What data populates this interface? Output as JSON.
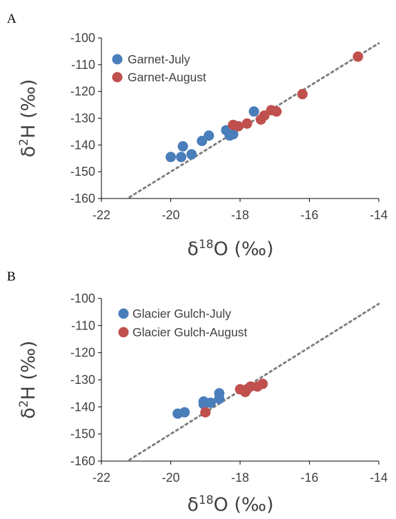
{
  "panels": [
    {
      "letter": "A"
    },
    {
      "letter": "B"
    }
  ],
  "chart_data": [
    {
      "type": "scatter",
      "panel_label": "A",
      "xlabel": "δ18O (‰)",
      "ylabel": "δ2H (‰)",
      "xlim": [
        -22,
        -14
      ],
      "ylim": [
        -160,
        -100
      ],
      "xticks": [
        -22,
        -20,
        -18,
        -16,
        -14
      ],
      "yticks": [
        -100,
        -110,
        -120,
        -130,
        -140,
        -150,
        -160
      ],
      "grid": false,
      "legend_position": "top-left",
      "reference_line": {
        "style": "dotted",
        "color": "#7f7f7f",
        "slope": 8,
        "intercept": 10
      },
      "series": [
        {
          "name": "Garnet-July",
          "color": "#4a7ebb",
          "points": [
            [
              -20.0,
              -144.5
            ],
            [
              -19.7,
              -144.5
            ],
            [
              -19.65,
              -140.5
            ],
            [
              -19.4,
              -143.5
            ],
            [
              -19.1,
              -138.5
            ],
            [
              -18.9,
              -136.5
            ],
            [
              -18.4,
              -134.5
            ],
            [
              -18.3,
              -136.5
            ],
            [
              -18.2,
              -136.0
            ],
            [
              -18.2,
              -133.0
            ],
            [
              -17.6,
              -127.5
            ]
          ]
        },
        {
          "name": "Garnet-August",
          "color": "#c0504d",
          "points": [
            [
              -18.2,
              -132.5
            ],
            [
              -18.05,
              -133.0
            ],
            [
              -17.8,
              -132.0
            ],
            [
              -17.4,
              -130.5
            ],
            [
              -17.3,
              -129.0
            ],
            [
              -17.1,
              -127.0
            ],
            [
              -16.95,
              -127.5
            ],
            [
              -16.2,
              -121.0
            ],
            [
              -14.6,
              -107.0
            ]
          ]
        }
      ]
    },
    {
      "type": "scatter",
      "panel_label": "B",
      "xlabel": "δ18O (‰)",
      "ylabel": "δ2H (‰)",
      "xlim": [
        -22,
        -14
      ],
      "ylim": [
        -160,
        -100
      ],
      "xticks": [
        -22,
        -20,
        -18,
        -16,
        -14
      ],
      "yticks": [
        -100,
        -110,
        -120,
        -130,
        -140,
        -150,
        -160
      ],
      "grid": false,
      "legend_position": "top-left",
      "reference_line": {
        "style": "dotted",
        "color": "#7f7f7f",
        "slope": 8,
        "intercept": 10
      },
      "series": [
        {
          "name": "Glacier Gulch-July",
          "color": "#4a7ebb",
          "points": [
            [
              -19.8,
              -142.5
            ],
            [
              -19.6,
              -142.0
            ],
            [
              -19.05,
              -139.0
            ],
            [
              -19.05,
              -138.0
            ],
            [
              -18.85,
              -138.5
            ],
            [
              -18.6,
              -137.0
            ],
            [
              -18.6,
              -135.0
            ]
          ]
        },
        {
          "name": "Glacier Gulch-August",
          "color": "#c0504d",
          "points": [
            [
              -19.0,
              -142.0
            ],
            [
              -18.0,
              -133.5
            ],
            [
              -17.85,
              -134.5
            ],
            [
              -17.8,
              -133.5
            ],
            [
              -17.7,
              -132.5
            ],
            [
              -17.5,
              -132.5
            ],
            [
              -17.35,
              -131.5
            ]
          ]
        }
      ]
    }
  ]
}
